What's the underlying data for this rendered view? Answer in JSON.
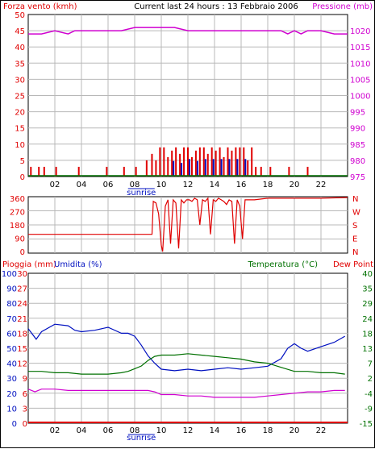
{
  "title": "Current last 24 hours : 13 Febbraio 2006",
  "colors": {
    "red": "#e00000",
    "magenta": "#d000d0",
    "blue": "#0010c0",
    "green": "#007000",
    "grid": "#b8b8b8",
    "axis": "#000000"
  },
  "chart_data": [
    {
      "type": "bar",
      "panel": "wind-pressure",
      "ylabel_left": "Forza vento (kmh)",
      "ylabel_right": "Pressione (mb)",
      "ylim_left": [
        0,
        50
      ],
      "ylim_right": [
        975,
        1025
      ],
      "y_ticks_left": [
        "0",
        "5",
        "10",
        "15",
        "20",
        "25",
        "30",
        "35",
        "40",
        "45",
        "50"
      ],
      "y_ticks_right": [
        "975",
        "980",
        "985",
        "990",
        "995",
        "1000",
        "1005",
        "1010",
        "1015",
        "1020"
      ],
      "x_ticks": [
        "02",
        "04",
        "06",
        "08",
        "10",
        "12",
        "14",
        "16",
        "18",
        "20",
        "22"
      ],
      "x_annotation": "sunrise",
      "series": [
        {
          "name": "Forza vento (kmh)",
          "color": "#e00000",
          "type": "bar",
          "x": [
            0.2,
            0.8,
            1.2,
            2.1,
            3.8,
            5.9,
            7.2,
            8.1,
            8.9,
            9.3,
            9.6,
            9.9,
            10.2,
            10.5,
            10.8,
            11.1,
            11.4,
            11.7,
            12.0,
            12.3,
            12.6,
            12.9,
            13.2,
            13.5,
            13.8,
            14.1,
            14.4,
            14.7,
            15.0,
            15.3,
            15.6,
            15.9,
            16.2,
            16.5,
            16.8,
            17.1,
            17.5,
            18.2,
            19.6,
            21.0
          ],
          "values": [
            3,
            3,
            3,
            3,
            3,
            3,
            3,
            3,
            5,
            7,
            5,
            9,
            9,
            6,
            8,
            9,
            7,
            9,
            9,
            6,
            8,
            9,
            9,
            7,
            9,
            8,
            9,
            6,
            9,
            8,
            9,
            9,
            9,
            5,
            9,
            3,
            3,
            3,
            3,
            3
          ]
        },
        {
          "name": "Pressione (mb)",
          "color": "#d000d0",
          "type": "line",
          "x": [
            0,
            1,
            2,
            3,
            3.5,
            4,
            5,
            6,
            7,
            8,
            9,
            10,
            11,
            12,
            13,
            14,
            15,
            16,
            17,
            18,
            19,
            19.5,
            20,
            20.5,
            21,
            22,
            23,
            24
          ],
          "values": [
            1019,
            1019,
            1020,
            1019,
            1020,
            1020,
            1020,
            1020,
            1020,
            1021,
            1021,
            1021,
            1021,
            1020,
            1020,
            1020,
            1020,
            1020,
            1020,
            1020,
            1020,
            1019,
            1020,
            1019,
            1020,
            1020,
            1019,
            1019
          ]
        }
      ]
    },
    {
      "type": "line",
      "panel": "wind-direction",
      "y_ticks": [
        "0",
        "90",
        "180",
        "270",
        "360"
      ],
      "y_ticks_right": [
        "N",
        "E",
        "S",
        "W",
        "N"
      ],
      "ylim": [
        0,
        360
      ],
      "series": [
        {
          "name": "direction",
          "color": "#e00000",
          "x": [
            0,
            9.3,
            9.4,
            9.6,
            9.8,
            10,
            10.1,
            10.3,
            10.5,
            10.7,
            10.9,
            11.1,
            11.3,
            11.5,
            11.7,
            11.9,
            12.1,
            12.3,
            12.5,
            12.7,
            12.9,
            13.1,
            13.3,
            13.5,
            13.7,
            13.9,
            14.1,
            14.3,
            14.5,
            14.7,
            14.9,
            15.1,
            15.3,
            15.5,
            15.7,
            15.9,
            16.1,
            16.3,
            16.5,
            17,
            18,
            20,
            22,
            24
          ],
          "values": [
            120,
            120,
            330,
            320,
            250,
            50,
            10,
            300,
            340,
            60,
            340,
            320,
            30,
            340,
            320,
            340,
            340,
            330,
            350,
            340,
            180,
            340,
            330,
            350,
            120,
            340,
            330,
            350,
            340,
            330,
            310,
            340,
            330,
            60,
            340,
            300,
            90,
            340,
            340,
            340,
            350,
            350,
            350,
            355
          ]
        }
      ]
    },
    {
      "type": "line",
      "panel": "rain-humidity-temperature",
      "ylabel_left_1": "Pioggia (mm)",
      "ylabel_left_2": "Umidita (%)",
      "ylabel_right_1": "Temperatura (°C)",
      "ylabel_right_2": "Dew Point",
      "y_ticks_rain": [
        "0",
        "3",
        "6",
        "9",
        "12",
        "15",
        "18",
        "21",
        "24",
        "27",
        "30"
      ],
      "y_ticks_humidity": [
        "0",
        "10",
        "20",
        "30",
        "40",
        "50",
        "60",
        "70",
        "80",
        "90",
        "100"
      ],
      "y_ticks_temp": [
        "-15",
        "-9",
        "-4",
        "2",
        "7",
        "13",
        "18",
        "24",
        "29",
        "35",
        "40"
      ],
      "ylim_humidity": [
        0,
        100
      ],
      "ylim_temp": [
        -15,
        40
      ],
      "x_ticks": [
        "02",
        "04",
        "06",
        "08",
        "10",
        "12",
        "14",
        "16",
        "18",
        "20",
        "22"
      ],
      "x_annotation": "sunrise",
      "series": [
        {
          "name": "Umidita (%)",
          "color": "#0010c0",
          "x": [
            0,
            0.6,
            1,
            2,
            3,
            3.5,
            4,
            5,
            6,
            7,
            7.5,
            8,
            8.5,
            9,
            9.5,
            10,
            11,
            12,
            13,
            14,
            15,
            16,
            17,
            18,
            19,
            19.5,
            20,
            20.5,
            21,
            22,
            23,
            23.8
          ],
          "values": [
            63,
            56,
            61,
            66,
            65,
            62,
            61,
            62,
            64,
            60,
            60,
            58,
            52,
            45,
            40,
            36,
            35,
            36,
            35,
            36,
            37,
            36,
            37,
            38,
            43,
            50,
            53,
            50,
            48,
            51,
            54,
            58
          ]
        },
        {
          "name": "Temperatura (°C)",
          "color": "#007000",
          "x": [
            0,
            1,
            2,
            3,
            4,
            5,
            6,
            7,
            7.5,
            8,
            8.5,
            9,
            9.5,
            10,
            11,
            12,
            13,
            14,
            15,
            16,
            17,
            18,
            19,
            20,
            21,
            22,
            23,
            23.8
          ],
          "values": [
            4,
            4,
            3.5,
            3.5,
            3,
            3,
            3,
            3.5,
            4,
            5,
            6,
            8,
            9.5,
            10,
            10,
            10.5,
            10,
            9.5,
            9,
            8.5,
            7.5,
            7,
            5.5,
            4,
            4,
            3.5,
            3.5,
            3
          ]
        },
        {
          "name": "Dew Point",
          "color": "#d000d0",
          "x": [
            0,
            0.5,
            1,
            2,
            3,
            4,
            5,
            6,
            7,
            8,
            9,
            9.5,
            10,
            11,
            12,
            13,
            14,
            15,
            16,
            17,
            18,
            19,
            20,
            21,
            22,
            23,
            23.8
          ],
          "values": [
            -2.5,
            -3.5,
            -2.5,
            -2.5,
            -3,
            -3,
            -3,
            -3,
            -3,
            -3,
            -3,
            -3.5,
            -4.5,
            -4.5,
            -5,
            -5,
            -5.5,
            -5.5,
            -5.5,
            -5.5,
            -5,
            -4.5,
            -4,
            -3.5,
            -3.5,
            -3,
            -3
          ]
        },
        {
          "name": "Pioggia (mm)",
          "color": "#e00000",
          "x": [
            0,
            24
          ],
          "values": [
            0,
            0
          ]
        }
      ]
    }
  ]
}
